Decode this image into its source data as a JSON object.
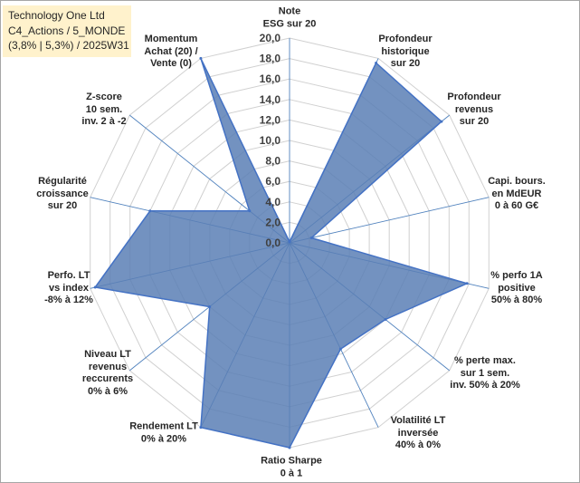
{
  "title_box": {
    "line1": "Technology One Ltd",
    "line2": "C4_Actions / 5_MONDE",
    "line3": "(3,8% | 5,3%) / 2025W31"
  },
  "chart_data": {
    "type": "radar",
    "rlim": [
      0,
      20
    ],
    "tick_step": 2,
    "tick_labels": [
      "0,0",
      "2,0",
      "4,0",
      "6,0",
      "8,0",
      "10,0",
      "12,0",
      "14,0",
      "16,0",
      "18,0",
      "20,0"
    ],
    "grid": true,
    "legend": "none",
    "axes": [
      [
        "Note",
        "ESG sur 20"
      ],
      [
        "Profondeur",
        "historique",
        "sur 20"
      ],
      [
        "Profondeur",
        "revenus",
        "sur 20"
      ],
      [
        "Capi. bours.",
        "en MdEUR",
        "0 à 60 G€"
      ],
      [
        "% perfo 1A",
        "positive",
        "50% à 80%"
      ],
      [
        "% perte max.",
        "sur 1 sem.",
        "inv. 50% à 20%"
      ],
      [
        "Volatilité LT",
        "inversée",
        "40% à 0%"
      ],
      [
        "Ratio Sharpe",
        "0 à 1"
      ],
      [
        "Rendement LT",
        "0% à 20%"
      ],
      [
        "Niveau LT",
        "revenus",
        "reccurents",
        "0% à 6%"
      ],
      [
        "Perfo. LT",
        "vs index",
        "-8% à 12%"
      ],
      [
        "Régularité",
        "croissance",
        "sur 20"
      ],
      [
        "Z-score",
        "10 sem.",
        "inv. 2 à -2"
      ],
      [
        "Momentum",
        "Achat (20) /",
        "Vente (0)"
      ]
    ],
    "series": [
      {
        "values": [
          0.1,
          19.5,
          19.0,
          2.2,
          17.8,
          12.0,
          11.5,
          20.0,
          20.0,
          10.0,
          19.5,
          14.0,
          5.0,
          20.0
        ]
      }
    ],
    "colors": {
      "fill": "#5b7fb5",
      "fill_opacity": 0.85,
      "stroke": "#4472c4",
      "grid": "#d0d0d0",
      "spoke": "#4f81bd"
    }
  }
}
